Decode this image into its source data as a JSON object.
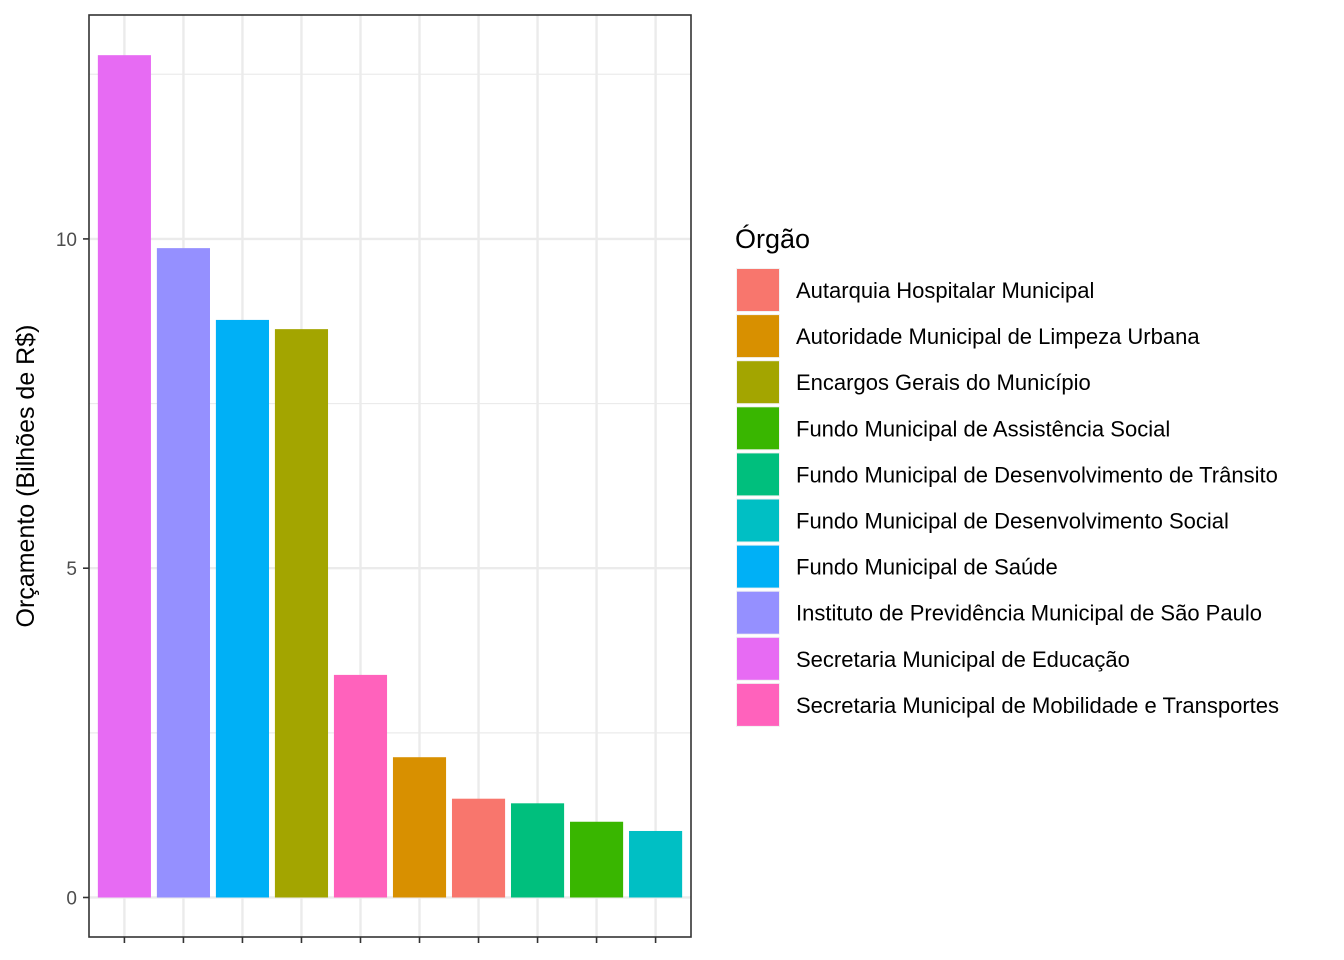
{
  "chart_data": {
    "type": "bar",
    "title": "",
    "xlabel": "",
    "ylabel": "Orçamento (Bilhões de R$)",
    "ylim": [
      -0.6,
      13.4
    ],
    "yticks": [
      0,
      5,
      10
    ],
    "grid": true,
    "legend": {
      "title": "Órgão",
      "position": "right"
    },
    "categories": [
      "Secretaria Municipal de Educação",
      "Instituto de Previdência Municipal de São Paulo",
      "Fundo Municipal de Saúde",
      "Encargos Gerais do Município",
      "Secretaria Municipal de Mobilidade e Transportes",
      "Autoridade Municipal de Limpeza Urbana",
      "Autarquia Hospitalar Municipal",
      "Fundo Municipal de Desenvolvimento de Trânsito",
      "Fundo Municipal de Assistência Social",
      "Fundo Municipal de Desenvolvimento Social"
    ],
    "values": [
      12.79,
      9.86,
      8.77,
      8.63,
      3.38,
      2.13,
      1.5,
      1.43,
      1.15,
      1.01
    ],
    "colors": [
      "#E76BF3",
      "#9590FF",
      "#00B0F6",
      "#A3A500",
      "#FF62BC",
      "#D89000",
      "#F8766D",
      "#00BF7D",
      "#39B600",
      "#00BFC4"
    ],
    "legend_entries": [
      {
        "label": "Autarquia Hospitalar Municipal",
        "color": "#F8766D"
      },
      {
        "label": "Autoridade Municipal de Limpeza Urbana",
        "color": "#D89000"
      },
      {
        "label": "Encargos Gerais do Município",
        "color": "#A3A500"
      },
      {
        "label": "Fundo Municipal de Assistência Social",
        "color": "#39B600"
      },
      {
        "label": "Fundo Municipal de Desenvolvimento de Trânsito",
        "color": "#00BF7D"
      },
      {
        "label": "Fundo Municipal de Desenvolvimento Social",
        "color": "#00BFC4"
      },
      {
        "label": "Fundo Municipal de Saúde",
        "color": "#00B0F6"
      },
      {
        "label": "Instituto de Previdência Municipal de São Paulo",
        "color": "#9590FF"
      },
      {
        "label": "Secretaria Municipal de Educação",
        "color": "#E76BF3"
      },
      {
        "label": "Secretaria Municipal de Mobilidade e Transportes",
        "color": "#FF62BC"
      }
    ]
  }
}
